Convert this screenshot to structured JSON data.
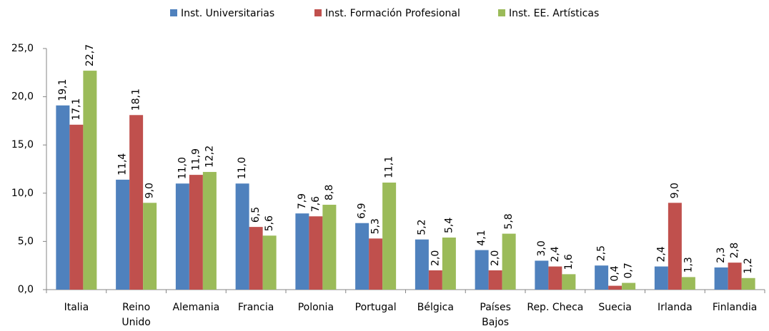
{
  "chart_data": {
    "type": "bar",
    "categories": [
      "Italia",
      "Reino Unido",
      "Alemania",
      "Francia",
      "Polonia",
      "Portugal",
      "Bélgica",
      "Países Bajos",
      "Rep. Checa",
      "Suecia",
      "Irlanda",
      "Finlandia"
    ],
    "series": [
      {
        "name": "Inst. Universitarias",
        "color": "#4f81bd",
        "values": [
          19.1,
          11.4,
          11.0,
          11.0,
          7.9,
          6.9,
          5.2,
          4.1,
          3.0,
          2.5,
          2.4,
          2.3
        ],
        "value_labels": [
          "19,1",
          "11,4",
          "11,0",
          "11,0",
          "7,9",
          "6,9",
          "5,2",
          "4,1",
          "3,0",
          "2,5",
          "2,4",
          "2,3"
        ]
      },
      {
        "name": "Inst. Formación Profesional",
        "color": "#c0504d",
        "values": [
          17.1,
          18.1,
          11.9,
          6.5,
          7.6,
          5.3,
          2.0,
          2.0,
          2.4,
          0.4,
          9.0,
          2.8
        ],
        "value_labels": [
          "17,1",
          "18,1",
          "11,9",
          "6,5",
          "7,6",
          "5,3",
          "2,0",
          "2,0",
          "2,4",
          "0,4",
          "9,0",
          "2,8"
        ]
      },
      {
        "name": "Inst. EE. Artísticas",
        "color": "#9bbb59",
        "values": [
          22.7,
          9.0,
          12.2,
          5.6,
          8.8,
          11.1,
          5.4,
          5.8,
          1.6,
          0.7,
          1.3,
          1.2
        ],
        "value_labels": [
          "22,7",
          "9,0",
          "12,2",
          "5,6",
          "8,8",
          "11,1",
          "5,4",
          "5,8",
          "1,6",
          "0,7",
          "1,3",
          "1,2"
        ]
      }
    ],
    "ylim": [
      0,
      25
    ],
    "yticks": [
      {
        "value": 0,
        "label": "0,0"
      },
      {
        "value": 5,
        "label": "5,0"
      },
      {
        "value": 10,
        "label": "10,0"
      },
      {
        "value": 15,
        "label": "15,0"
      },
      {
        "value": 20,
        "label": "20,0"
      },
      {
        "value": 25,
        "label": "25,0"
      }
    ],
    "grid": false,
    "legend": "top"
  }
}
